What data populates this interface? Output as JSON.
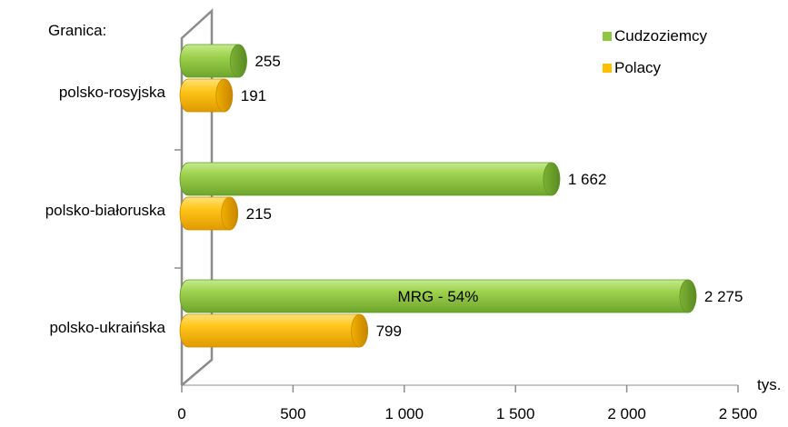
{
  "chart_data": {
    "type": "bar",
    "orientation": "horizontal",
    "style": "3d-cylinder",
    "y_title": "Granica:",
    "x_unit": "tys.",
    "categories": [
      "polsko-rosyjska",
      "polsko-białoruska",
      "polsko-ukraińska"
    ],
    "series": [
      {
        "name": "Cudzoziemcy",
        "color": "#8dc63f",
        "values": [
          255,
          1662,
          2275
        ],
        "data_labels": [
          "255",
          "1 662",
          "2 275"
        ]
      },
      {
        "name": "Polacy",
        "color": "#ffc000",
        "values": [
          191,
          215,
          799
        ],
        "data_labels": [
          "191",
          "215",
          "799"
        ]
      }
    ],
    "xlim": [
      0,
      2500
    ],
    "x_ticks": [
      0,
      500,
      1000,
      1500,
      2000,
      2500
    ],
    "x_tick_labels": [
      "0",
      "500",
      "1 000",
      "1 500",
      "2 000",
      "2 500"
    ],
    "annotation": {
      "category": "polsko-ukraińska",
      "series": "Cudzoziemcy",
      "text": "MRG - 54%"
    },
    "legend": {
      "position": "top-right",
      "items": [
        "Cudzoziemcy",
        "Polacy"
      ]
    },
    "grid": false
  }
}
